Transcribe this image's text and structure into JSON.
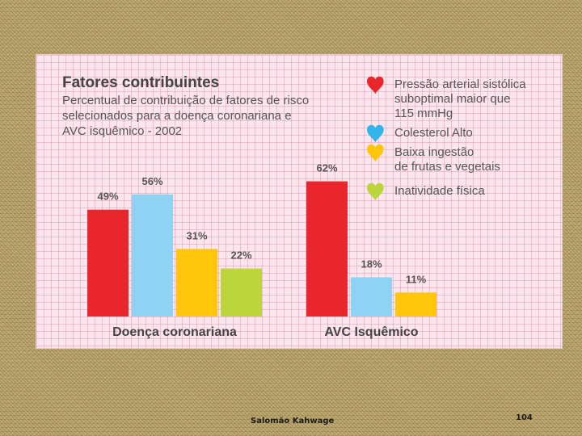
{
  "chart_data": {
    "type": "bar",
    "title": "Fatores contribuintes",
    "subtitle_lines": [
      "Percentual de contribuição de fatores de risco",
      "selecionados para a doença coronariana e",
      "AVC isquêmico - 2002"
    ],
    "ylim": [
      0,
      70
    ],
    "groups": [
      {
        "name": "Doença coronariana",
        "bars": [
          {
            "factor": "Pressão arterial sistólica suboptimal maior que 115 mmHg",
            "value": 49,
            "label": "49%",
            "color": "#e8262c"
          },
          {
            "factor": "Colesterol Alto",
            "value": 56,
            "label": "56%",
            "color": "#8fd3f4"
          },
          {
            "factor": "Baixa ingestão de frutas e vegetais",
            "value": 31,
            "label": "31%",
            "color": "#ffc60b"
          },
          {
            "factor": "Inatividade física",
            "value": 22,
            "label": "22%",
            "color": "#bcd53a"
          }
        ]
      },
      {
        "name": "AVC Isquêmico",
        "bars": [
          {
            "factor": "Pressão arterial sistólica suboptimal maior que 115 mmHg",
            "value": 62,
            "label": "62%",
            "color": "#e8262c"
          },
          {
            "factor": "Colesterol Alto",
            "value": 18,
            "label": "18%",
            "color": "#8fd3f4"
          },
          {
            "factor": "Baixa ingestão de frutas e vegetais",
            "value": 11,
            "label": "11%",
            "color": "#ffc60b"
          }
        ]
      }
    ],
    "legend": {
      "placement": "top-right",
      "entries": [
        {
          "icon": "heart-icon",
          "color": "#e8262c",
          "lines": [
            "Pressão arterial sistólica",
            "suboptimal maior que",
            "115 mmHg"
          ]
        },
        {
          "icon": "heart-icon",
          "color": "#33b4ea",
          "lines": [
            "Colesterol Alto"
          ]
        },
        {
          "icon": "heart-icon",
          "color": "#ffc60b",
          "lines": [
            "Baixa ingestão",
            "de frutas e vegetais"
          ]
        },
        {
          "icon": "heart-icon",
          "color": "#bcd53a",
          "lines": [
            "Inatividade física"
          ]
        }
      ]
    }
  },
  "footer": {
    "author": "Salomão Kahwage",
    "page": "104"
  }
}
